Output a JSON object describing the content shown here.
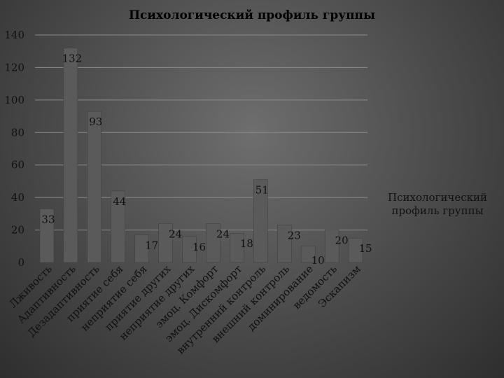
{
  "chart_data": {
    "type": "bar",
    "title": "Психологический профиль группы",
    "categories": [
      "Лживость",
      "Адаптивность",
      "Дезадаптивность",
      "приятие себя",
      "неприятие себя",
      "приятие других",
      "неприятие других",
      "эмоц. Комфорт",
      "эмоц. Дискомфорт",
      "внутренний контроль",
      "внешний контроль",
      "доминирование",
      "ведомость",
      "Эскапизм"
    ],
    "series": [
      {
        "name": "Психологический профиль группы",
        "values": [
          33,
          132,
          93,
          44,
          17,
          24,
          16,
          24,
          18,
          51,
          23,
          10,
          20,
          15
        ]
      }
    ],
    "ylim": [
      0,
      140
    ],
    "yticks": [
      0,
      20,
      40,
      60,
      80,
      100,
      120,
      140
    ],
    "grid": true,
    "legend": "right",
    "colors": {
      "bar": "#5a5a5a",
      "bar_edge": "#3c3c3c",
      "grid": "#8a8a8a",
      "text": "#111111"
    }
  }
}
